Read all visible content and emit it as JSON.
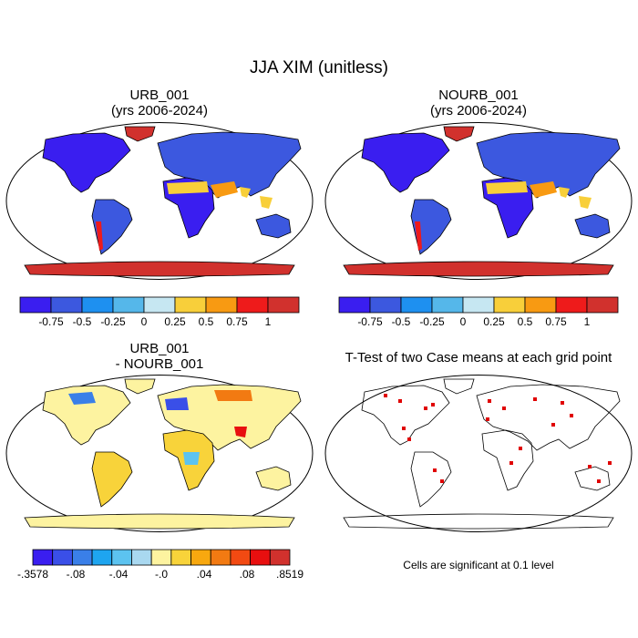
{
  "title": "JJA XIM (unitless)",
  "colors": {
    "ocean": "#ffffff",
    "coast": "#000000",
    "sig": "#e00000",
    "main_scale": [
      "#3a1ef0",
      "#3c58df",
      "#1e90f0",
      "#55b7ea",
      "#c6e7f2",
      "#f8cf3a",
      "#f89a12",
      "#ee1b1b",
      "#d1312d"
    ],
    "diff_scale": [
      "#3a1ef0",
      "#3a4fe8",
      "#3a7fe8",
      "#1ea5f0",
      "#5cc3f0",
      "#a9d8f0",
      "#fdf3a0",
      "#f8d33a",
      "#f8a80f",
      "#f27a12",
      "#f24a12",
      "#e80f0f",
      "#d1312d"
    ]
  },
  "chart_data": [
    {
      "type": "heatmap",
      "title_line1": "URB_001",
      "title_line2": "(yrs 2006-2024)",
      "colorbar": {
        "bins": 9,
        "ticks": [
          "-0.75",
          "-0.5",
          "-0.25",
          "0",
          "0.25",
          "0.5",
          "0.75",
          "1"
        ]
      }
    },
    {
      "type": "heatmap",
      "title_line1": "NOURB_001",
      "title_line2": "(yrs 2006-2024)",
      "colorbar": {
        "bins": 9,
        "ticks": [
          "-0.75",
          "-0.5",
          "-0.25",
          "0",
          "0.25",
          "0.5",
          "0.75",
          "1"
        ]
      }
    },
    {
      "type": "heatmap",
      "title_line1": "URB_001",
      "title_line2": "- NOURB_001",
      "colorbar": {
        "bins": 13,
        "ticks": [
          "-.3578",
          "-.08",
          "-.04",
          "-.0",
          ".04",
          ".08",
          ".8519"
        ]
      }
    },
    {
      "type": "heatmap",
      "title": "T-Test of two Case means at each grid point",
      "footnote": "Cells are significant at 0.1 level"
    }
  ]
}
